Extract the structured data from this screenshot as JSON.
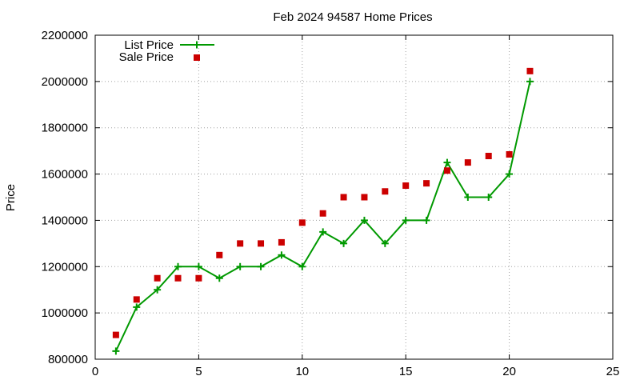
{
  "chart_data": {
    "type": "scatter",
    "title": "Feb 2024 94587 Home Prices",
    "xlabel": "",
    "ylabel": "Price",
    "xlim": [
      0,
      25
    ],
    "ylim": [
      800000,
      2200000
    ],
    "xticks": [
      0,
      5,
      10,
      15,
      20,
      25
    ],
    "yticks": [
      800000,
      1000000,
      1200000,
      1400000,
      1600000,
      1800000,
      2000000,
      2200000
    ],
    "grid": true,
    "legend_position": "top-left",
    "series": [
      {
        "name": "List Price",
        "style": "line-with-plus-markers",
        "color": "#009900",
        "x": [
          1,
          2,
          3,
          4,
          5,
          6,
          7,
          8,
          9,
          10,
          11,
          12,
          13,
          14,
          15,
          16,
          17,
          18,
          19,
          20,
          21
        ],
        "y": [
          835000,
          1025000,
          1100000,
          1200000,
          1200000,
          1150000,
          1200000,
          1200000,
          1250000,
          1200000,
          1350000,
          1300000,
          1400000,
          1300000,
          1400000,
          1400000,
          1650000,
          1500000,
          1500000,
          1600000,
          2000000
        ]
      },
      {
        "name": "Sale Price",
        "style": "square-markers",
        "color": "#cc0000",
        "x": [
          1,
          2,
          3,
          4,
          5,
          6,
          7,
          8,
          9,
          10,
          11,
          12,
          13,
          14,
          15,
          16,
          17,
          18,
          19,
          20,
          21
        ],
        "y": [
          905000,
          1058000,
          1150000,
          1150000,
          1150000,
          1250000,
          1300000,
          1300000,
          1305000,
          1390000,
          1430000,
          1500000,
          1500000,
          1525000,
          1550000,
          1560000,
          1615000,
          1650000,
          1678000,
          1685000,
          2045000
        ]
      }
    ]
  }
}
